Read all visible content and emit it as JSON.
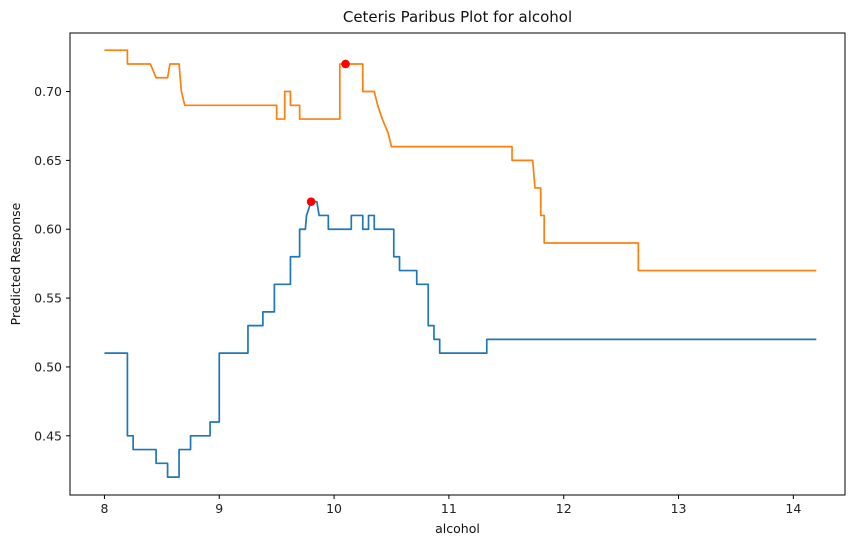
{
  "chart_data": {
    "type": "line",
    "title": "Ceteris Paribus Plot for alcohol",
    "xlabel": "alcohol",
    "ylabel": "Predicted Response",
    "xlim": [
      7.7,
      14.45
    ],
    "ylim": [
      0.407,
      0.7425
    ],
    "xticks": [
      8,
      9,
      10,
      11,
      12,
      13,
      14
    ],
    "xtick_labels": [
      "8",
      "9",
      "10",
      "11",
      "12",
      "13",
      "14"
    ],
    "yticks": [
      0.45,
      0.5,
      0.55,
      0.6,
      0.65,
      0.7
    ],
    "ytick_labels": [
      "0.45",
      "0.50",
      "0.55",
      "0.60",
      "0.65",
      "0.70"
    ],
    "grid": false,
    "legend": false,
    "series": [
      {
        "color": "#ff7f0e",
        "x": [
          8.0,
          8.2,
          8.2,
          8.4,
          8.45,
          8.55,
          8.57,
          8.65,
          8.67,
          8.7,
          9.5,
          9.5,
          9.57,
          9.57,
          9.62,
          9.62,
          9.7,
          9.7,
          9.8,
          9.8,
          10.05,
          10.05,
          10.25,
          10.25,
          10.35,
          10.38,
          10.38,
          10.42,
          10.42,
          10.47,
          10.47,
          10.5,
          10.5,
          11.55,
          11.55,
          11.73,
          11.75,
          11.75,
          11.8,
          11.8,
          11.83,
          11.83,
          12.65,
          12.65,
          14.2
        ],
        "y": [
          0.73,
          0.73,
          0.72,
          0.72,
          0.71,
          0.71,
          0.72,
          0.72,
          0.7,
          0.69,
          0.69,
          0.68,
          0.68,
          0.7,
          0.7,
          0.69,
          0.69,
          0.68,
          0.68,
          0.68,
          0.68,
          0.72,
          0.72,
          0.7,
          0.7,
          0.69,
          0.69,
          0.68,
          0.68,
          0.67,
          0.67,
          0.66,
          0.66,
          0.66,
          0.65,
          0.65,
          0.63,
          0.63,
          0.63,
          0.61,
          0.61,
          0.59,
          0.59,
          0.57,
          0.57
        ]
      },
      {
        "color": "#1f77b4",
        "x": [
          8.0,
          8.2,
          8.2,
          8.25,
          8.25,
          8.45,
          8.45,
          8.55,
          8.55,
          8.65,
          8.65,
          8.75,
          8.75,
          8.92,
          8.92,
          9.0,
          9.0,
          9.05,
          9.05,
          9.25,
          9.25,
          9.38,
          9.38,
          9.48,
          9.48,
          9.62,
          9.62,
          9.7,
          9.7,
          9.75,
          9.76,
          9.8,
          9.82,
          9.85,
          9.87,
          9.87,
          9.95,
          9.95,
          10.15,
          10.15,
          10.25,
          10.25,
          10.3,
          10.3,
          10.35,
          10.35,
          10.52,
          10.52,
          10.57,
          10.57,
          10.72,
          10.72,
          10.82,
          10.82,
          10.87,
          10.87,
          10.92,
          10.92,
          11.33,
          11.33,
          14.2
        ],
        "y": [
          0.51,
          0.51,
          0.45,
          0.45,
          0.44,
          0.44,
          0.43,
          0.43,
          0.42,
          0.42,
          0.44,
          0.44,
          0.45,
          0.45,
          0.46,
          0.46,
          0.51,
          0.51,
          0.51,
          0.51,
          0.53,
          0.53,
          0.54,
          0.54,
          0.56,
          0.56,
          0.58,
          0.58,
          0.6,
          0.6,
          0.61,
          0.62,
          0.62,
          0.62,
          0.61,
          0.61,
          0.61,
          0.6,
          0.6,
          0.61,
          0.61,
          0.6,
          0.6,
          0.61,
          0.61,
          0.6,
          0.6,
          0.58,
          0.58,
          0.57,
          0.57,
          0.56,
          0.56,
          0.53,
          0.53,
          0.52,
          0.52,
          0.51,
          0.51,
          0.52,
          0.52
        ]
      }
    ],
    "markers": [
      {
        "x": 10.1,
        "y": 0.72,
        "color": "#ff0000"
      },
      {
        "x": 9.8,
        "y": 0.62,
        "color": "#ff0000"
      }
    ]
  }
}
